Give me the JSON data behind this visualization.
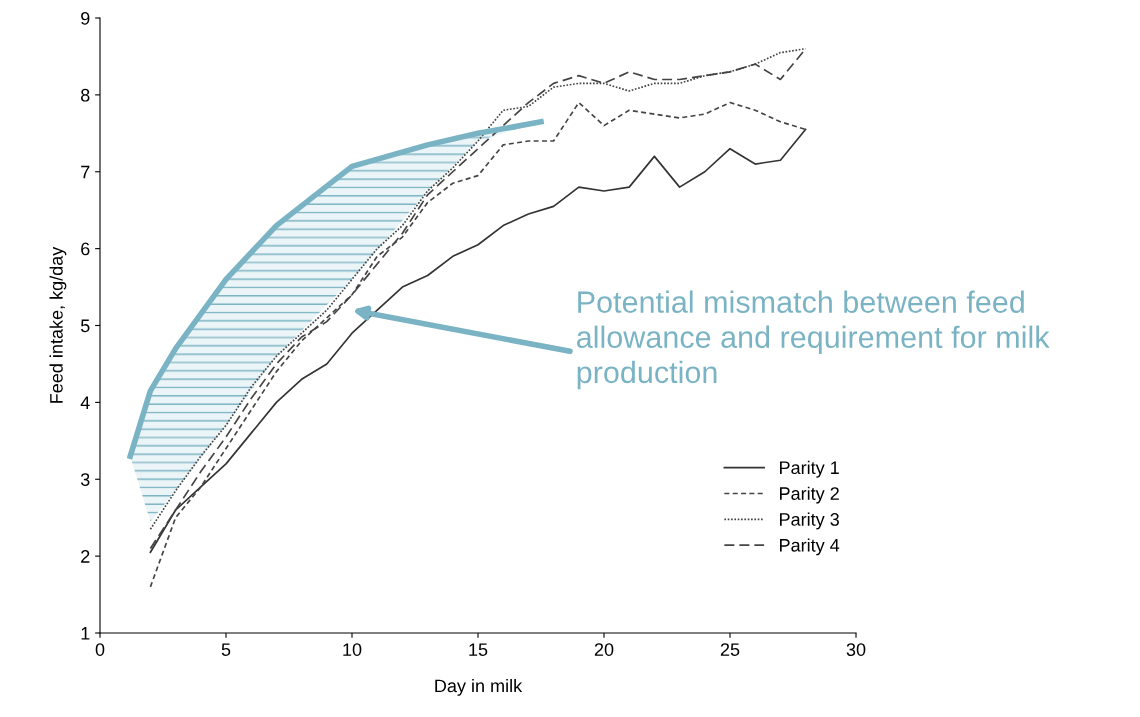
{
  "chart_data": {
    "type": "line",
    "xlabel": "Day in milk",
    "ylabel": "Feed intake, kg/day",
    "xlim": [
      0,
      30
    ],
    "xticks": [
      0,
      5,
      10,
      15,
      20,
      25,
      30
    ],
    "ylim": [
      1,
      9
    ],
    "yticks": [
      1,
      2,
      3,
      4,
      5,
      6,
      7,
      8,
      9
    ],
    "grid": false,
    "legend": "lower right",
    "x": [
      2,
      3,
      4,
      5,
      6,
      7,
      8,
      9,
      10,
      11,
      12,
      13,
      14,
      15,
      16,
      17,
      18,
      19,
      20,
      21,
      22,
      23,
      24,
      25,
      26,
      27,
      28
    ],
    "series": [
      {
        "name": "Parity 1",
        "color": "#333333",
        "line_style": "solid",
        "values": [
          2.05,
          2.6,
          2.9,
          3.2,
          3.6,
          4.0,
          4.3,
          4.5,
          4.9,
          5.2,
          5.5,
          5.65,
          5.9,
          6.05,
          6.3,
          6.45,
          6.55,
          6.8,
          6.75,
          6.8,
          7.2,
          6.8,
          7.0,
          7.3,
          7.1,
          7.15,
          7.55
        ]
      },
      {
        "name": "Parity 2",
        "color": "#444444",
        "line_style": "dashed",
        "values": [
          1.6,
          2.5,
          2.9,
          3.4,
          3.9,
          4.4,
          4.8,
          5.1,
          5.4,
          5.9,
          6.15,
          6.6,
          6.85,
          6.95,
          7.35,
          7.4,
          7.4,
          7.9,
          7.6,
          7.8,
          7.75,
          7.7,
          7.75,
          7.9,
          7.8,
          7.65,
          7.55
        ]
      },
      {
        "name": "Parity 3",
        "color": "#444444",
        "line_style": "dotted",
        "values": [
          2.35,
          2.85,
          3.3,
          3.7,
          4.2,
          4.6,
          4.9,
          5.2,
          5.6,
          6.0,
          6.3,
          6.75,
          7.05,
          7.4,
          7.8,
          7.85,
          8.1,
          8.15,
          8.15,
          8.05,
          8.15,
          8.15,
          8.25,
          8.3,
          8.4,
          8.55,
          8.6
        ]
      },
      {
        "name": "Parity 4",
        "color": "#444444",
        "line_style": "longdash",
        "values": [
          2.1,
          2.6,
          3.1,
          3.55,
          4.05,
          4.5,
          4.85,
          5.05,
          5.4,
          5.8,
          6.2,
          6.7,
          7.0,
          7.3,
          7.6,
          7.9,
          8.15,
          8.25,
          8.15,
          8.3,
          8.2,
          8.2,
          8.25,
          8.3,
          8.4,
          8.2,
          8.6
        ]
      },
      {
        "color": "#7ab3c4",
        "line_style": "solid",
        "x": [
          1.2,
          2,
          3,
          5,
          7,
          10,
          13,
          15,
          17.5
        ],
        "values": [
          3.3,
          4.15,
          4.7,
          5.6,
          6.3,
          7.07,
          7.35,
          7.5,
          7.65
        ],
        "lower": [
          3.3,
          2.45,
          2.85,
          3.7,
          4.6,
          5.6,
          6.75,
          7.4,
          7.65
        ],
        "upper": [
          3.3,
          4.15,
          4.7,
          5.6,
          6.3,
          7.07,
          7.35,
          7.5,
          7.65
        ]
      }
    ],
    "annotations": [
      "Potential mismatch between feed allowance and requirement for milk production"
    ]
  }
}
